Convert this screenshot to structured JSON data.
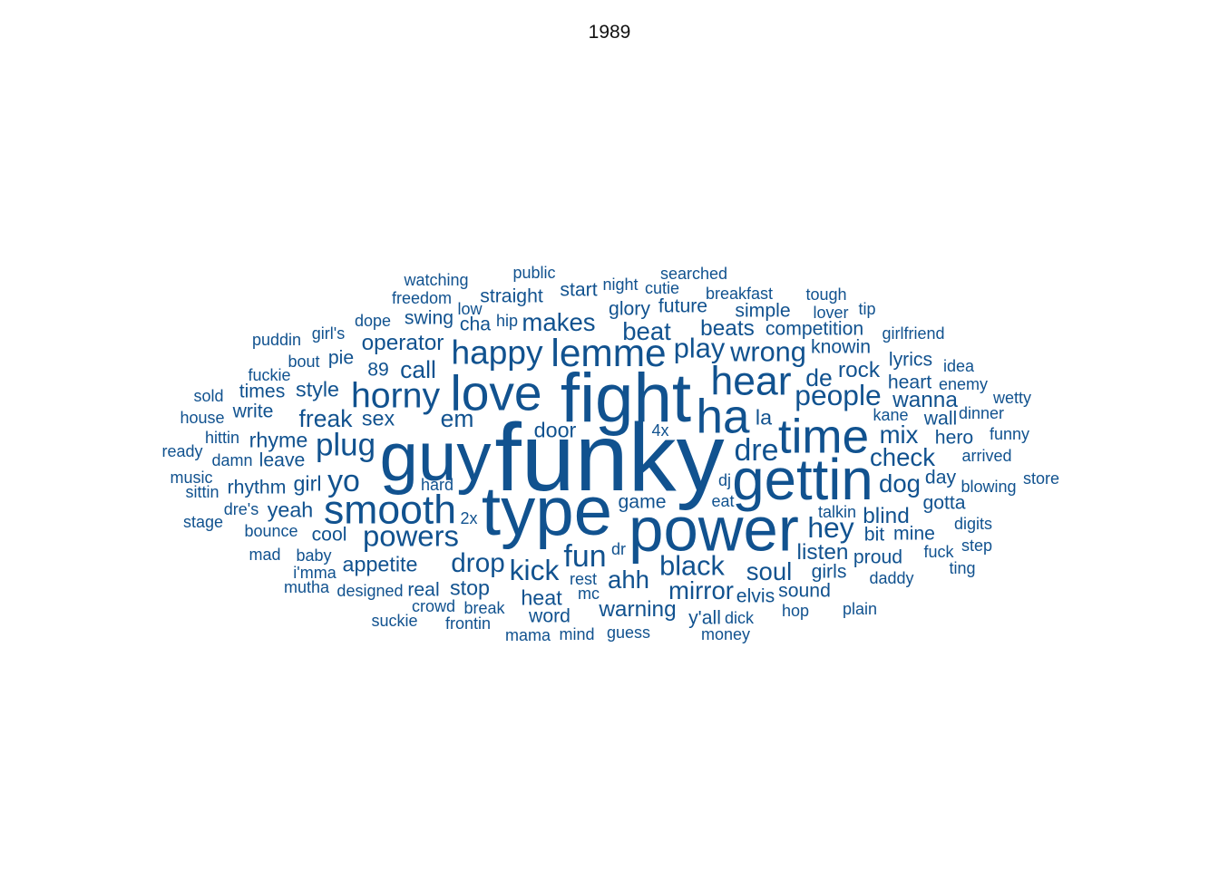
{
  "chart_data": {
    "type": "wordcloud",
    "title": "1989",
    "color": "#11528f",
    "words": [
      {
        "text": "funky",
        "weight": 100
      },
      {
        "text": "fight",
        "weight": 72
      },
      {
        "text": "guy",
        "weight": 72
      },
      {
        "text": "type",
        "weight": 72
      },
      {
        "text": "power",
        "weight": 65
      },
      {
        "text": "gettin",
        "weight": 60
      },
      {
        "text": "love",
        "weight": 52
      },
      {
        "text": "ha",
        "weight": 50
      },
      {
        "text": "time",
        "weight": 50
      },
      {
        "text": "hear",
        "weight": 42
      },
      {
        "text": "smooth",
        "weight": 42
      },
      {
        "text": "lemme",
        "weight": 40
      },
      {
        "text": "horny",
        "weight": 37
      },
      {
        "text": "happy",
        "weight": 35
      },
      {
        "text": "plug",
        "weight": 33
      },
      {
        "text": "dre",
        "weight": 32
      },
      {
        "text": "fun",
        "weight": 32
      },
      {
        "text": "yo",
        "weight": 32
      },
      {
        "text": "powers",
        "weight": 31
      },
      {
        "text": "people",
        "weight": 30
      },
      {
        "text": "hey",
        "weight": 30
      },
      {
        "text": "kick",
        "weight": 30
      },
      {
        "text": "play",
        "weight": 29
      },
      {
        "text": "wrong",
        "weight": 29
      },
      {
        "text": "black",
        "weight": 29
      },
      {
        "text": "drop",
        "weight": 28
      },
      {
        "text": "makes",
        "weight": 26
      },
      {
        "text": "beat",
        "weight": 26
      },
      {
        "text": "mix",
        "weight": 26
      },
      {
        "text": "check",
        "weight": 26
      },
      {
        "text": "dog",
        "weight": 26
      },
      {
        "text": "mirror",
        "weight": 26
      },
      {
        "text": "ahh",
        "weight": 26
      },
      {
        "text": "soul",
        "weight": 26
      },
      {
        "text": "freak",
        "weight": 25
      },
      {
        "text": "em",
        "weight": 25
      },
      {
        "text": "call",
        "weight": 25
      },
      {
        "text": "de",
        "weight": 25
      },
      {
        "text": "beats",
        "weight": 23
      },
      {
        "text": "wanna",
        "weight": 23
      },
      {
        "text": "listen",
        "weight": 23
      },
      {
        "text": "blind",
        "weight": 23
      },
      {
        "text": "operator",
        "weight": 23
      },
      {
        "text": "rock",
        "weight": 23
      },
      {
        "text": "warning",
        "weight": 23
      },
      {
        "text": "appetite",
        "weight": 22
      },
      {
        "text": "rhyme",
        "weight": 22
      },
      {
        "text": "yeah",
        "weight": 22
      },
      {
        "text": "girl",
        "weight": 22
      },
      {
        "text": "heat",
        "weight": 22
      },
      {
        "text": "stop",
        "weight": 22
      },
      {
        "text": "la",
        "weight": 22
      },
      {
        "text": "straight",
        "weight": 20
      },
      {
        "text": "competition",
        "weight": 20
      },
      {
        "text": "start",
        "weight": 20
      },
      {
        "text": "future",
        "weight": 20
      },
      {
        "text": "glory",
        "weight": 20
      },
      {
        "text": "simple",
        "weight": 20
      },
      {
        "text": "knowin",
        "weight": 20
      },
      {
        "text": "swing",
        "weight": 20
      },
      {
        "text": "lyrics",
        "weight": 20
      },
      {
        "text": "heart",
        "weight": 20
      },
      {
        "text": "style",
        "weight": 22
      },
      {
        "text": "times",
        "weight": 20
      },
      {
        "text": "sex",
        "weight": 22
      },
      {
        "text": "door",
        "weight": 22
      },
      {
        "text": "89",
        "weight": 20
      },
      {
        "text": "rhythm",
        "weight": 20
      },
      {
        "text": "leave",
        "weight": 20
      },
      {
        "text": "write",
        "weight": 20
      },
      {
        "text": "wall",
        "weight": 20
      },
      {
        "text": "hero",
        "weight": 20
      },
      {
        "text": "gotta",
        "weight": 20
      },
      {
        "text": "day",
        "weight": 20
      },
      {
        "text": "game",
        "weight": 20
      },
      {
        "text": "bit",
        "weight": 20
      },
      {
        "text": "mine",
        "weight": 20
      },
      {
        "text": "proud",
        "weight": 20
      },
      {
        "text": "girls",
        "weight": 20
      },
      {
        "text": "sound",
        "weight": 20
      },
      {
        "text": "cool",
        "weight": 20
      },
      {
        "text": "real",
        "weight": 20
      },
      {
        "text": "word",
        "weight": 20
      },
      {
        "text": "y'all",
        "weight": 20
      },
      {
        "text": "elvis",
        "weight": 20
      },
      {
        "text": "cha",
        "weight": 20
      },
      {
        "text": "watching",
        "weight": 17
      },
      {
        "text": "public",
        "weight": 17
      },
      {
        "text": "searched",
        "weight": 17
      },
      {
        "text": "night",
        "weight": 17
      },
      {
        "text": "cutie",
        "weight": 17
      },
      {
        "text": "breakfast",
        "weight": 17
      },
      {
        "text": "tough",
        "weight": 17
      },
      {
        "text": "freedom",
        "weight": 17
      },
      {
        "text": "low",
        "weight": 17
      },
      {
        "text": "lover",
        "weight": 17
      },
      {
        "text": "tip",
        "weight": 17
      },
      {
        "text": "dope",
        "weight": 17
      },
      {
        "text": "hip",
        "weight": 17
      },
      {
        "text": "girl's",
        "weight": 17
      },
      {
        "text": "puddin",
        "weight": 17
      },
      {
        "text": "girlfriend",
        "weight": 17
      },
      {
        "text": "bout",
        "weight": 17
      },
      {
        "text": "pie",
        "weight": 20
      },
      {
        "text": "fuckie",
        "weight": 17
      },
      {
        "text": "idea",
        "weight": 17
      },
      {
        "text": "enemy",
        "weight": 17
      },
      {
        "text": "sold",
        "weight": 17
      },
      {
        "text": "wetty",
        "weight": 17
      },
      {
        "text": "house",
        "weight": 17
      },
      {
        "text": "kane",
        "weight": 17
      },
      {
        "text": "dinner",
        "weight": 17
      },
      {
        "text": "4x",
        "weight": 17
      },
      {
        "text": "hittin",
        "weight": 17
      },
      {
        "text": "funny",
        "weight": 17
      },
      {
        "text": "ready",
        "weight": 17
      },
      {
        "text": "damn",
        "weight": 17
      },
      {
        "text": "arrived",
        "weight": 17
      },
      {
        "text": "music",
        "weight": 17
      },
      {
        "text": "dj",
        "weight": 17
      },
      {
        "text": "store",
        "weight": 17
      },
      {
        "text": "sittin",
        "weight": 17
      },
      {
        "text": "hard",
        "weight": 17
      },
      {
        "text": "blowing",
        "weight": 17
      },
      {
        "text": "eat",
        "weight": 17
      },
      {
        "text": "dre's",
        "weight": 17
      },
      {
        "text": "stage",
        "weight": 17
      },
      {
        "text": "2x",
        "weight": 17
      },
      {
        "text": "talkin",
        "weight": 17
      },
      {
        "text": "digits",
        "weight": 17
      },
      {
        "text": "bounce",
        "weight": 17
      },
      {
        "text": "dr",
        "weight": 17
      },
      {
        "text": "step",
        "weight": 17
      },
      {
        "text": "mad",
        "weight": 17
      },
      {
        "text": "baby",
        "weight": 17
      },
      {
        "text": "fuck",
        "weight": 17
      },
      {
        "text": "i'mma",
        "weight": 17
      },
      {
        "text": "rest",
        "weight": 17
      },
      {
        "text": "ting",
        "weight": 17
      },
      {
        "text": "daddy",
        "weight": 17
      },
      {
        "text": "mutha",
        "weight": 17
      },
      {
        "text": "designed",
        "weight": 17
      },
      {
        "text": "mc",
        "weight": 17
      },
      {
        "text": "crowd",
        "weight": 17
      },
      {
        "text": "break",
        "weight": 17
      },
      {
        "text": "hop",
        "weight": 17
      },
      {
        "text": "plain",
        "weight": 17
      },
      {
        "text": "suckie",
        "weight": 17
      },
      {
        "text": "frontin",
        "weight": 17
      },
      {
        "text": "dick",
        "weight": 17
      },
      {
        "text": "mama",
        "weight": 17
      },
      {
        "text": "mind",
        "weight": 17
      },
      {
        "text": "guess",
        "weight": 17
      },
      {
        "text": "money",
        "weight": 17
      }
    ]
  }
}
